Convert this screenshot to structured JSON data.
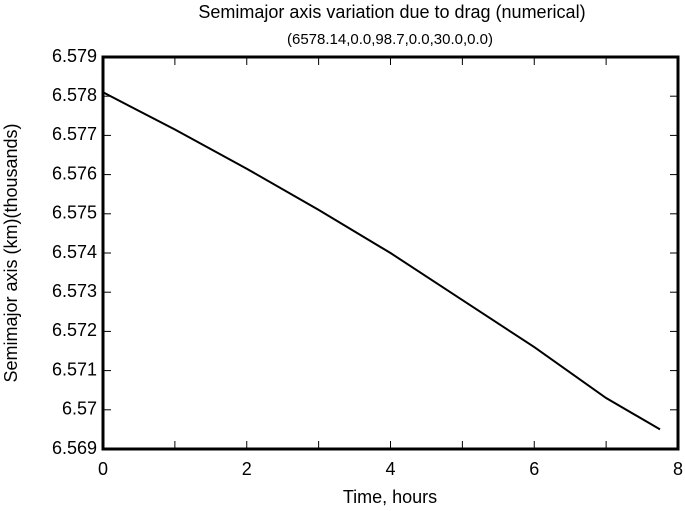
{
  "chart_data": {
    "type": "line",
    "title": "Semimajor axis variation due to drag (numerical)",
    "subtitle": "(6578.14,0.0,98.7,0.0,30.0,0.0)",
    "xlabel": "Time, hours",
    "ylabel": "Semimajor axis (km)(thousands)",
    "x": [
      0,
      1,
      2,
      3,
      4,
      5,
      6,
      7,
      7.75
    ],
    "series": [
      {
        "name": "Semimajor axis",
        "color": "#000000",
        "values": [
          6.5781,
          6.57715,
          6.57615,
          6.5751,
          6.574,
          6.5728,
          6.5716,
          6.5703,
          6.5695
        ]
      }
    ],
    "xlim": [
      0,
      8
    ],
    "xticks": [
      0,
      2,
      4,
      6,
      8
    ],
    "xminorticks": [
      1,
      3,
      5,
      7
    ],
    "ylim": [
      6.569,
      6.579
    ],
    "yticks": [
      6.569,
      6.57,
      6.571,
      6.572,
      6.573,
      6.574,
      6.575,
      6.576,
      6.577,
      6.578,
      6.579
    ],
    "grid": false
  }
}
